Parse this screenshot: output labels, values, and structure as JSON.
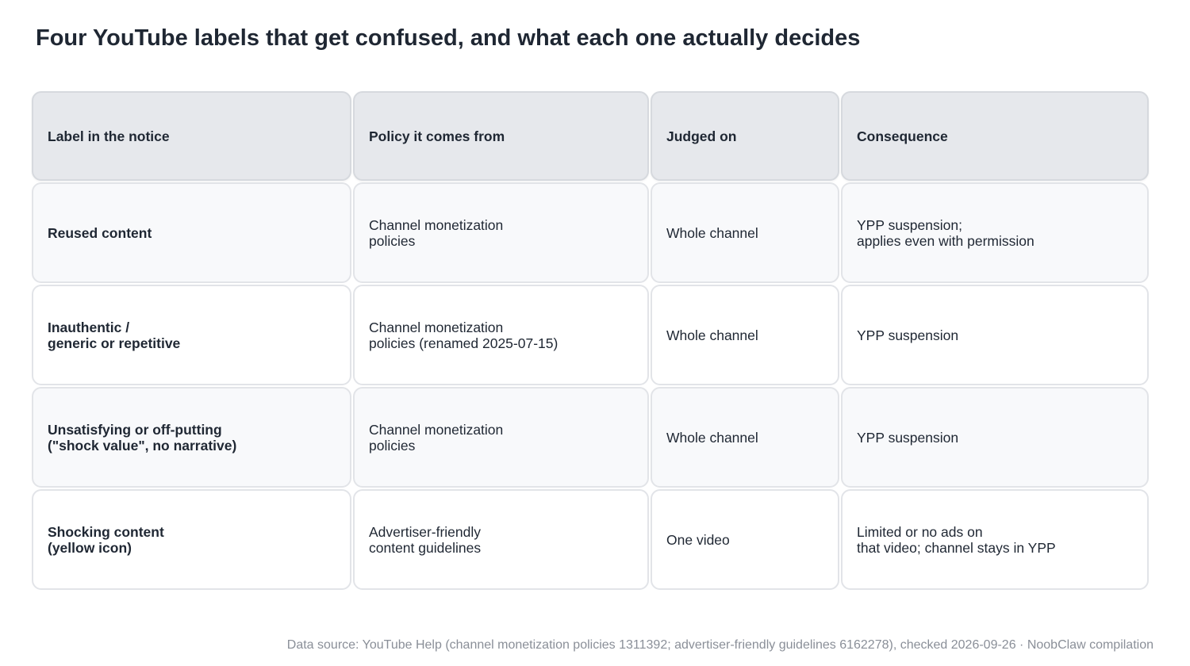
{
  "title": "Four YouTube labels that get confused, and what each one actually decides",
  "table": {
    "headers": [
      "Label in the notice",
      "Policy it comes from",
      "Judged on",
      "Consequence"
    ],
    "rows": [
      [
        "Reused content",
        "Channel monetization\npolicies",
        "Whole channel",
        "YPP suspension;\napplies even with permission"
      ],
      [
        "Inauthentic /\ngeneric or repetitive",
        "Channel monetization\npolicies (renamed 2025-07-15)",
        "Whole channel",
        "YPP suspension"
      ],
      [
        "Unsatisfying or off-putting\n(\"shock value\", no narrative)",
        "Channel monetization\npolicies",
        "Whole channel",
        "YPP suspension"
      ],
      [
        "Shocking content\n(yellow icon)",
        "Advertiser-friendly\ncontent guidelines",
        "One video",
        "Limited or no ads on\nthat video; channel stays in YPP"
      ]
    ]
  },
  "source": "Data source: YouTube Help (channel monetization policies 1311392; advertiser-friendly guidelines 6162278), checked 2026-09-26 · NoobClaw compilation"
}
